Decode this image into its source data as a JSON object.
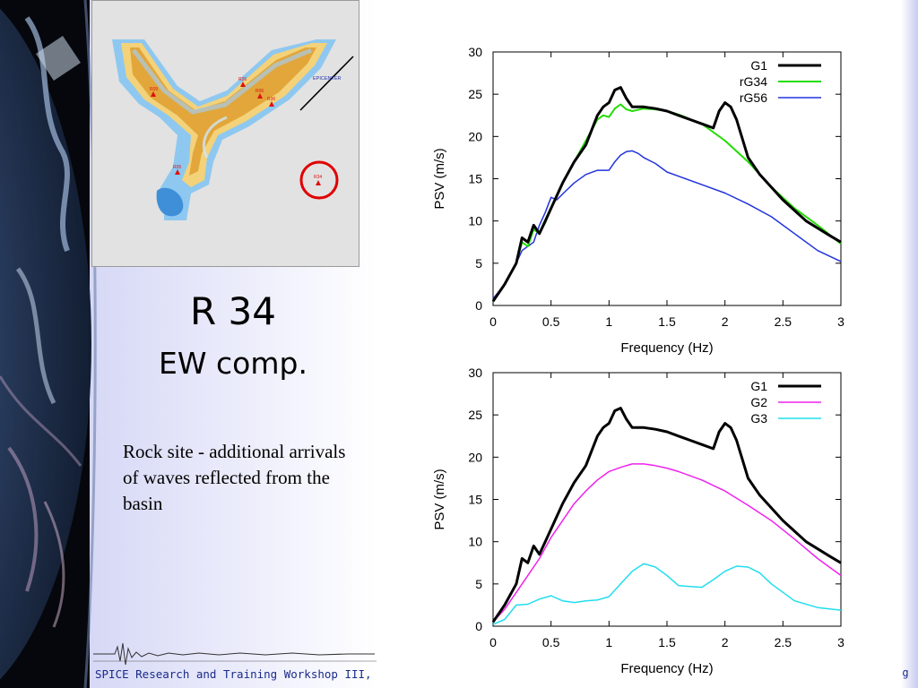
{
  "slide": {
    "title": "R 34",
    "subtitle": "EW comp.",
    "body": "Rock site - additional arrivals of waves reflected from the basin",
    "footer": "SPICE Research and Training Workshop III,",
    "footer_right": "g"
  },
  "map": {
    "labels": {
      "epicenter": "EPICENTER",
      "r34": "R34",
      "r05": "R05",
      "r06": "R06",
      "r09": "R09",
      "r26": "R26",
      "r36": "R36"
    },
    "colors": {
      "basin_blue": "#8ec8f0",
      "basin_yellow": "#f3d27a",
      "basin_orange": "#e2a63a",
      "marker": "#dd1111",
      "circle": "#e00000"
    }
  },
  "chart_data": [
    {
      "type": "line",
      "title": "",
      "xlabel": "Frequency (Hz)",
      "ylabel": "PSV (m/s)",
      "xlim": [
        0,
        3
      ],
      "ylim": [
        0,
        30
      ],
      "xticks": [
        "0",
        "0.5",
        "1",
        "1.5",
        "2",
        "2.5",
        "3"
      ],
      "yticks": [
        "0",
        "5",
        "10",
        "15",
        "20",
        "25",
        "30"
      ],
      "legend_position": "top-right",
      "series": [
        {
          "name": "G1",
          "color": "#000000",
          "width": 3,
          "x": [
            0,
            0.1,
            0.2,
            0.25,
            0.3,
            0.35,
            0.4,
            0.45,
            0.5,
            0.6,
            0.7,
            0.8,
            0.9,
            0.95,
            1.0,
            1.05,
            1.1,
            1.15,
            1.2,
            1.3,
            1.4,
            1.5,
            1.6,
            1.7,
            1.8,
            1.9,
            1.95,
            2.0,
            2.05,
            2.1,
            2.2,
            2.3,
            2.5,
            2.7,
            2.9,
            3.0
          ],
          "y": [
            0.5,
            2.5,
            5.0,
            8.0,
            7.5,
            9.5,
            8.5,
            10.0,
            11.5,
            14.5,
            17.0,
            19.0,
            22.5,
            23.5,
            24.0,
            25.5,
            25.8,
            24.5,
            23.5,
            23.5,
            23.3,
            23.0,
            22.5,
            22.0,
            21.5,
            21.0,
            23.0,
            24.0,
            23.5,
            22.0,
            17.5,
            15.5,
            12.5,
            10.0,
            8.3,
            7.5
          ]
        },
        {
          "name": "rG34",
          "color": "#22dd00",
          "width": 2,
          "x": [
            0,
            0.1,
            0.2,
            0.25,
            0.3,
            0.35,
            0.4,
            0.45,
            0.5,
            0.6,
            0.7,
            0.8,
            0.9,
            0.95,
            1.0,
            1.05,
            1.1,
            1.15,
            1.2,
            1.3,
            1.4,
            1.5,
            1.6,
            1.8,
            2.0,
            2.2,
            2.4,
            2.6,
            2.8,
            3.0
          ],
          "y": [
            0.5,
            2.5,
            5.0,
            7.5,
            7.0,
            9.0,
            8.5,
            9.8,
            11.5,
            14.5,
            17.0,
            19.5,
            22.0,
            22.5,
            22.3,
            23.3,
            23.8,
            23.2,
            23.0,
            23.3,
            23.2,
            23.0,
            22.6,
            21.5,
            19.5,
            17.0,
            14.0,
            11.5,
            9.5,
            7.3
          ]
        },
        {
          "name": "rG56",
          "color": "#2233dd",
          "width": 1.5,
          "x": [
            0,
            0.1,
            0.2,
            0.25,
            0.3,
            0.35,
            0.4,
            0.45,
            0.5,
            0.55,
            0.6,
            0.7,
            0.8,
            0.9,
            1.0,
            1.05,
            1.1,
            1.15,
            1.2,
            1.25,
            1.3,
            1.4,
            1.5,
            1.6,
            1.8,
            2.0,
            2.2,
            2.4,
            2.6,
            2.8,
            3.0
          ],
          "y": [
            0.8,
            2.5,
            5.0,
            6.5,
            7.0,
            7.5,
            9.5,
            11.0,
            12.8,
            12.5,
            13.2,
            14.5,
            15.5,
            16.0,
            16.0,
            17.0,
            17.8,
            18.2,
            18.3,
            18.0,
            17.5,
            16.8,
            15.8,
            15.3,
            14.3,
            13.3,
            12.0,
            10.5,
            8.5,
            6.5,
            5.2
          ]
        }
      ]
    },
    {
      "type": "line",
      "title": "",
      "xlabel": "Frequency (Hz)",
      "ylabel": "PSV (m/s)",
      "xlim": [
        0,
        3
      ],
      "ylim": [
        0,
        30
      ],
      "xticks": [
        "0",
        "0.5",
        "1",
        "1.5",
        "2",
        "2.5",
        "3"
      ],
      "yticks": [
        "0",
        "5",
        "10",
        "15",
        "20",
        "25",
        "30"
      ],
      "legend_position": "top-right",
      "series": [
        {
          "name": "G1",
          "color": "#000000",
          "width": 3,
          "x": [
            0,
            0.1,
            0.2,
            0.25,
            0.3,
            0.35,
            0.4,
            0.45,
            0.5,
            0.6,
            0.7,
            0.8,
            0.9,
            0.95,
            1.0,
            1.05,
            1.1,
            1.15,
            1.2,
            1.3,
            1.4,
            1.5,
            1.6,
            1.7,
            1.8,
            1.9,
            1.95,
            2.0,
            2.05,
            2.1,
            2.2,
            2.3,
            2.5,
            2.7,
            2.9,
            3.0
          ],
          "y": [
            0.5,
            2.5,
            5.0,
            8.0,
            7.5,
            9.5,
            8.5,
            10.0,
            11.5,
            14.5,
            17.0,
            19.0,
            22.5,
            23.5,
            24.0,
            25.5,
            25.8,
            24.5,
            23.5,
            23.5,
            23.3,
            23.0,
            22.5,
            22.0,
            21.5,
            21.0,
            23.0,
            24.0,
            23.5,
            22.0,
            17.5,
            15.5,
            12.5,
            10.0,
            8.3,
            7.5
          ]
        },
        {
          "name": "G2",
          "color": "#ee22ee",
          "width": 1.5,
          "x": [
            0,
            0.1,
            0.2,
            0.3,
            0.4,
            0.5,
            0.6,
            0.7,
            0.8,
            0.9,
            1.0,
            1.1,
            1.2,
            1.3,
            1.4,
            1.5,
            1.6,
            1.8,
            2.0,
            2.2,
            2.4,
            2.6,
            2.8,
            3.0
          ],
          "y": [
            0.5,
            2.0,
            4.0,
            6.0,
            8.0,
            10.5,
            12.5,
            14.5,
            16.0,
            17.3,
            18.3,
            18.8,
            19.2,
            19.2,
            19.0,
            18.7,
            18.3,
            17.3,
            16.0,
            14.3,
            12.5,
            10.3,
            8.0,
            6.0
          ]
        },
        {
          "name": "G3",
          "color": "#22ddee",
          "width": 1.5,
          "x": [
            0,
            0.1,
            0.2,
            0.3,
            0.4,
            0.5,
            0.6,
            0.7,
            0.8,
            0.9,
            1.0,
            1.1,
            1.2,
            1.3,
            1.4,
            1.5,
            1.6,
            1.8,
            1.9,
            2.0,
            2.1,
            2.2,
            2.3,
            2.4,
            2.6,
            2.8,
            3.0
          ],
          "y": [
            0.2,
            0.8,
            2.5,
            2.6,
            3.2,
            3.6,
            3.0,
            2.8,
            3.0,
            3.1,
            3.5,
            5.0,
            6.5,
            7.4,
            7.0,
            6.0,
            4.8,
            4.6,
            5.5,
            6.5,
            7.1,
            7.0,
            6.3,
            5.0,
            3.0,
            2.2,
            1.9
          ]
        }
      ]
    }
  ]
}
